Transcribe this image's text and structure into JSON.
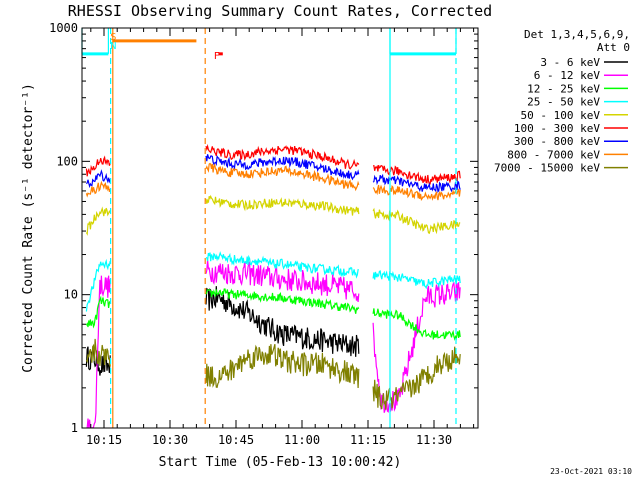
{
  "chart_data": {
    "type": "line",
    "title": "RHESSI Observing Summary Count Rates, Corrected",
    "xlabel": "Start Time (05-Feb-13 10:00:42)",
    "ylabel": "Corrected Count Rate (s⁻¹ detector⁻¹)",
    "ylog": true,
    "ylim": [
      1,
      1000
    ],
    "xlim_minutes": [
      10.0,
      100.0
    ],
    "y_tick_labels": [
      "1",
      "10",
      "100",
      "1000"
    ],
    "x_ticks": [
      {
        "minute": 15,
        "label": "10:15"
      },
      {
        "minute": 30,
        "label": "10:30"
      },
      {
        "minute": 45,
        "label": "10:45"
      },
      {
        "minute": 60,
        "label": "11:00"
      },
      {
        "minute": 75,
        "label": "11:15"
      },
      {
        "minute": 90,
        "label": "11:30"
      }
    ],
    "legend_header": [
      "Det 1,3,4,5,6,9,",
      "Att 0"
    ],
    "legend_position": "right",
    "gaps_minutes": [
      [
        16.5,
        38.0
      ],
      [
        73.0,
        76.0
      ]
    ],
    "series": [
      {
        "name": "3 - 6 keV",
        "color": "#000000",
        "points": [
          [
            11,
            3.4
          ],
          [
            13,
            3.3
          ],
          [
            14,
            3.0
          ],
          [
            16,
            2.9
          ],
          [
            38,
            9.0
          ],
          [
            41,
            9.5
          ],
          [
            44,
            8.5
          ],
          [
            47,
            7.5
          ],
          [
            50,
            6.5
          ],
          [
            53,
            5.5
          ],
          [
            56,
            5.0
          ],
          [
            60,
            4.8
          ],
          [
            65,
            4.5
          ],
          [
            70,
            4.2
          ],
          [
            75,
            4.0
          ]
        ]
      },
      {
        "name": "6 - 12 keV",
        "color": "#ff00ff",
        "points": [
          [
            11,
            1.0
          ],
          [
            13,
            1.0
          ],
          [
            14,
            12.0
          ],
          [
            16,
            11.5
          ],
          [
            38,
            15.0
          ],
          [
            41,
            15.0
          ],
          [
            44,
            14.5
          ],
          [
            47,
            14.5
          ],
          [
            50,
            14.0
          ],
          [
            53,
            13.5
          ],
          [
            56,
            13.0
          ],
          [
            60,
            12.5
          ],
          [
            65,
            12.0
          ],
          [
            70,
            11.0
          ],
          [
            75,
            10.5
          ],
          [
            78,
            1.6
          ],
          [
            82,
            1.6
          ],
          [
            88,
            9.5
          ],
          [
            91,
            10.0
          ],
          [
            94,
            10.0
          ],
          [
            96,
            10.5
          ]
        ]
      },
      {
        "name": "12 - 25 keV",
        "color": "#00ff00",
        "points": [
          [
            11,
            6.0
          ],
          [
            13,
            6.2
          ],
          [
            14,
            9.0
          ],
          [
            16,
            8.5
          ],
          [
            38,
            10.0
          ],
          [
            41,
            10.5
          ],
          [
            44,
            10.0
          ],
          [
            47,
            10.0
          ],
          [
            50,
            9.8
          ],
          [
            53,
            9.6
          ],
          [
            56,
            9.4
          ],
          [
            60,
            9.0
          ],
          [
            65,
            8.5
          ],
          [
            70,
            8.0
          ],
          [
            75,
            7.5
          ],
          [
            78,
            7.2
          ],
          [
            82,
            7.0
          ],
          [
            88,
            5.0
          ],
          [
            91,
            5.0
          ],
          [
            94,
            5.0
          ],
          [
            96,
            5.0
          ]
        ]
      },
      {
        "name": "25 - 50 keV",
        "color": "#00ffff",
        "points": [
          [
            11,
            8.0
          ],
          [
            13,
            13.0
          ],
          [
            14,
            17.0
          ],
          [
            16,
            17.0
          ],
          [
            38,
            19.0
          ],
          [
            41,
            19.5
          ],
          [
            44,
            18.5
          ],
          [
            47,
            18.0
          ],
          [
            50,
            18.0
          ],
          [
            53,
            17.0
          ],
          [
            56,
            17.0
          ],
          [
            60,
            16.0
          ],
          [
            65,
            15.5
          ],
          [
            70,
            15.0
          ],
          [
            75,
            14.0
          ],
          [
            78,
            14.0
          ],
          [
            82,
            13.5
          ],
          [
            88,
            12.0
          ],
          [
            91,
            12.5
          ],
          [
            94,
            13.0
          ],
          [
            96,
            13.0
          ]
        ]
      },
      {
        "name": "50 - 100 keV",
        "color": "#d4d400",
        "points": [
          [
            11,
            30.0
          ],
          [
            13,
            38.0
          ],
          [
            14,
            43.0
          ],
          [
            16,
            41.0
          ],
          [
            38,
            52.0
          ],
          [
            41,
            50.0
          ],
          [
            44,
            48.0
          ],
          [
            47,
            47.0
          ],
          [
            50,
            48.0
          ],
          [
            53,
            49.0
          ],
          [
            56,
            49.0
          ],
          [
            60,
            48.0
          ],
          [
            65,
            46.0
          ],
          [
            70,
            43.0
          ],
          [
            75,
            41.0
          ],
          [
            78,
            40.0
          ],
          [
            82,
            39.0
          ],
          [
            88,
            31.0
          ],
          [
            91,
            32.0
          ],
          [
            94,
            33.0
          ],
          [
            96,
            34.0
          ]
        ]
      },
      {
        "name": "100 - 300 keV",
        "color": "#ff0000",
        "points": [
          [
            11,
            83.0
          ],
          [
            13,
            90.0
          ],
          [
            14,
            105.0
          ],
          [
            16,
            96.0
          ],
          [
            38,
            125.0
          ],
          [
            41,
            117.0
          ],
          [
            44,
            112.0
          ],
          [
            47,
            112.0
          ],
          [
            50,
            117.0
          ],
          [
            53,
            121.0
          ],
          [
            56,
            124.0
          ],
          [
            60,
            118.0
          ],
          [
            65,
            107.0
          ],
          [
            70,
            95.0
          ],
          [
            75,
            90.0
          ],
          [
            78,
            86.0
          ],
          [
            82,
            84.0
          ],
          [
            88,
            73.0
          ],
          [
            91,
            74.0
          ],
          [
            94,
            76.0
          ],
          [
            96,
            78.0
          ]
        ]
      },
      {
        "name": "300 - 800 keV",
        "color": "#0000ff",
        "points": [
          [
            11,
            67.0
          ],
          [
            13,
            72.0
          ],
          [
            14,
            80.0
          ],
          [
            16,
            74.0
          ],
          [
            38,
            108.0
          ],
          [
            41,
            100.0
          ],
          [
            44,
            96.0
          ],
          [
            47,
            94.0
          ],
          [
            50,
            97.0
          ],
          [
            53,
            100.0
          ],
          [
            56,
            102.0
          ],
          [
            60,
            97.0
          ],
          [
            65,
            88.0
          ],
          [
            70,
            80.0
          ],
          [
            75,
            76.0
          ],
          [
            78,
            73.0
          ],
          [
            82,
            71.0
          ],
          [
            88,
            63.0
          ],
          [
            91,
            64.0
          ],
          [
            94,
            65.0
          ],
          [
            96,
            66.0
          ]
        ]
      },
      {
        "name": "800 - 7000 keV",
        "color": "#ff8000",
        "points": [
          [
            11,
            58.0
          ],
          [
            13,
            61.0
          ],
          [
            14,
            66.0
          ],
          [
            16,
            63.0
          ],
          [
            38,
            92.0
          ],
          [
            41,
            86.0
          ],
          [
            44,
            82.0
          ],
          [
            47,
            80.0
          ],
          [
            50,
            82.0
          ],
          [
            53,
            84.0
          ],
          [
            56,
            85.0
          ],
          [
            60,
            81.0
          ],
          [
            65,
            74.0
          ],
          [
            70,
            67.0
          ],
          [
            75,
            63.0
          ],
          [
            78,
            61.0
          ],
          [
            82,
            60.0
          ],
          [
            88,
            55.0
          ],
          [
            91,
            55.0
          ],
          [
            94,
            56.0
          ],
          [
            96,
            57.0
          ]
        ]
      },
      {
        "name": "7000 - 15000 keV",
        "color": "#808000",
        "points": [
          [
            11,
            3.0
          ],
          [
            13,
            3.8
          ],
          [
            14,
            3.5
          ],
          [
            16,
            3.5
          ],
          [
            38,
            2.5
          ],
          [
            41,
            2.4
          ],
          [
            44,
            2.7
          ],
          [
            47,
            3.3
          ],
          [
            50,
            3.5
          ],
          [
            53,
            3.6
          ],
          [
            56,
            3.2
          ],
          [
            60,
            3.0
          ],
          [
            65,
            3.0
          ],
          [
            70,
            2.6
          ],
          [
            75,
            2.2
          ],
          [
            78,
            1.6
          ],
          [
            82,
            1.7
          ],
          [
            88,
            2.4
          ],
          [
            91,
            3.0
          ],
          [
            94,
            3.3
          ],
          [
            96,
            3.5
          ]
        ]
      }
    ],
    "annotations": [
      {
        "label": "S",
        "minute": 16.0,
        "color": "#ff8000"
      },
      {
        "label": "N",
        "minute": 16.0,
        "color": "#00ffff"
      },
      {
        "label": "F",
        "minute": 39.5,
        "color": "#ff0000"
      }
    ],
    "flags": [
      {
        "name": "SAA",
        "start": 17.0,
        "end": 36.0,
        "level": 800,
        "color": "#ff8000"
      },
      {
        "name": "flare",
        "start": 41.0,
        "end": 42.0,
        "level": 640,
        "color": "#ff0000"
      },
      {
        "name": "night",
        "start": 10.0,
        "end": 16.0,
        "level": 640,
        "color": "#00ffff"
      },
      {
        "name": "night",
        "start": 80.0,
        "end": 95.0,
        "level": 640,
        "color": "#00ffff"
      }
    ],
    "vlines": [
      {
        "minute": 16.5,
        "color": "#00ffff",
        "style": "dashed"
      },
      {
        "minute": 17.0,
        "color": "#ff8000",
        "style": "solid"
      },
      {
        "minute": 38.0,
        "color": "#ff8000",
        "style": "dashed"
      },
      {
        "minute": 80.0,
        "color": "#00ffff",
        "style": "solid"
      },
      {
        "minute": 95.0,
        "color": "#00ffff",
        "style": "dashed"
      }
    ]
  },
  "footer": {
    "timestamp": "23-Oct-2021 03:10"
  }
}
